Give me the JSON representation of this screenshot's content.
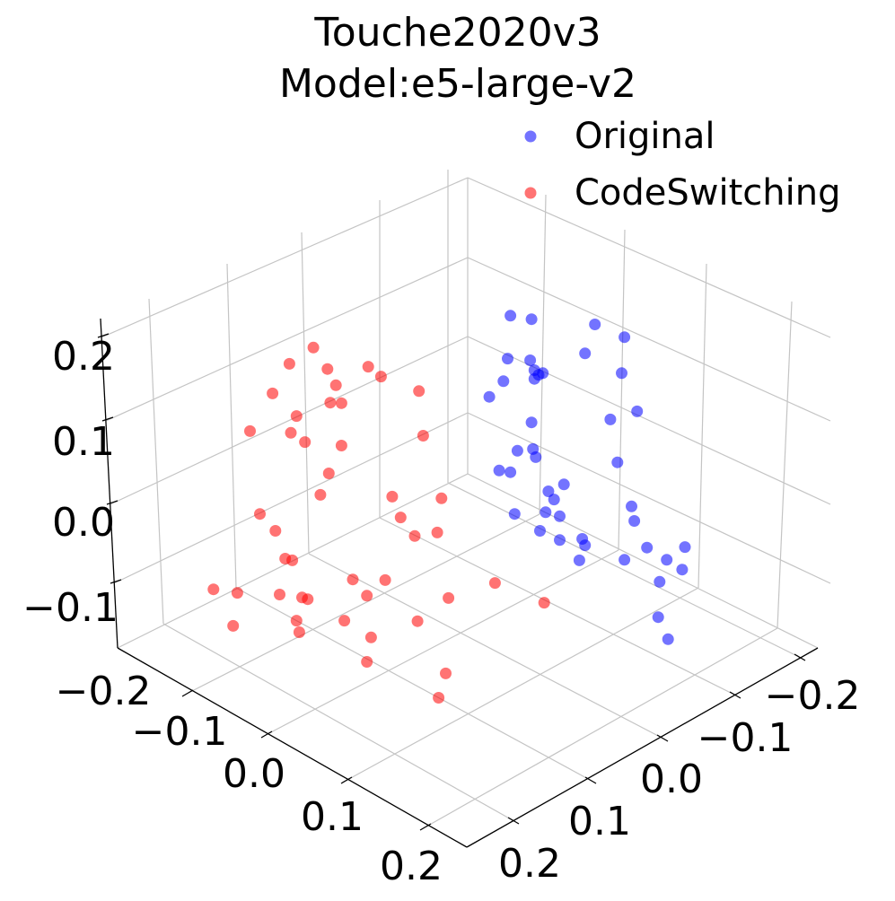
{
  "chart_data": {
    "type": "scatter3d",
    "title": "Touche2020v3\nModel:e5-large-v2",
    "title_lines": [
      "Touche2020v3",
      "Model:e5-large-v2"
    ],
    "xlabel": "",
    "ylabel": "",
    "zlabel": "",
    "x_ticks": [
      "−0.2",
      "−0.1",
      "0.0",
      "0.1",
      "0.2"
    ],
    "y_ticks": [
      "−0.2",
      "−0.1",
      "0.0",
      "0.1",
      "0.2"
    ],
    "z_ticks": [
      "0.2",
      "0.1",
      "0.0",
      "−0.1"
    ],
    "grid": true,
    "legend_position": "top-right",
    "series": [
      {
        "name": "Original",
        "color": "#0000ff",
        "points": [
          [
            0.031,
            -0.031,
            0.337
          ],
          [
            0.046,
            -0.046,
            0.331
          ],
          [
            0.091,
            -0.091,
            0.322
          ],
          [
            0.112,
            -0.112,
            0.3
          ],
          [
            0.084,
            -0.084,
            0.272
          ],
          [
            0.029,
            -0.029,
            0.263
          ],
          [
            0.045,
            -0.045,
            0.26
          ],
          [
            0.048,
            -0.048,
            0.243
          ],
          [
            0.051,
            -0.051,
            0.235
          ],
          [
            0.054,
            -0.054,
            0.238
          ],
          [
            0.048,
            -0.048,
            0.228
          ],
          [
            0.016,
            -0.016,
            0.197
          ],
          [
            0.026,
            -0.026,
            0.224
          ],
          [
            0.11,
            -0.11,
            0.238
          ],
          [
            0.121,
            -0.121,
            0.172
          ],
          [
            0.102,
            -0.102,
            0.158
          ],
          [
            0.046,
            -0.046,
            0.153
          ],
          [
            0.047,
            -0.047,
            0.107
          ],
          [
            0.036,
            -0.036,
            0.104
          ],
          [
            0.023,
            -0.023,
            0.07
          ],
          [
            0.031,
            -0.031,
            0.067
          ],
          [
            0.049,
            -0.049,
            0.093
          ],
          [
            0.107,
            -0.107,
            0.084
          ],
          [
            0.069,
            -0.069,
            0.046
          ],
          [
            0.058,
            -0.058,
            0.034
          ],
          [
            0.062,
            -0.062,
            0.02
          ],
          [
            0.117,
            -0.117,
            0.008
          ],
          [
            0.119,
            -0.119,
            -0.017
          ],
          [
            0.034,
            -0.034,
            -0.005
          ],
          [
            0.056,
            -0.056,
            -0.002
          ],
          [
            0.066,
            -0.066,
            -0.009
          ],
          [
            0.052,
            -0.052,
            -0.034
          ],
          [
            0.082,
            -0.082,
            -0.048
          ],
          [
            0.084,
            -0.084,
            -0.059
          ],
          [
            0.066,
            -0.066,
            -0.05
          ],
          [
            0.08,
            -0.08,
            -0.085
          ],
          [
            0.112,
            -0.112,
            -0.084
          ],
          [
            0.128,
            -0.128,
            -0.063
          ],
          [
            0.142,
            -0.142,
            -0.084
          ],
          [
            0.155,
            -0.155,
            -0.062
          ],
          [
            0.153,
            -0.153,
            -0.101
          ],
          [
            0.137,
            -0.137,
            -0.122
          ],
          [
            0.136,
            -0.136,
            -0.183
          ],
          [
            0.143,
            -0.143,
            -0.221
          ]
        ]
      },
      {
        "name": "CodeSwitching",
        "color": "#ff0000",
        "points": [
          [
            -0.109,
            0.109,
            0.282
          ],
          [
            -0.126,
            0.126,
            0.254
          ],
          [
            -0.099,
            0.099,
            0.245
          ],
          [
            -0.07,
            0.07,
            0.249
          ],
          [
            -0.061,
            0.061,
            0.232
          ],
          [
            -0.093,
            0.093,
            0.217
          ],
          [
            -0.138,
            0.138,
            0.203
          ],
          [
            -0.097,
            0.097,
            0.187
          ],
          [
            -0.089,
            0.089,
            0.186
          ],
          [
            -0.034,
            0.034,
            0.207
          ],
          [
            -0.121,
            0.121,
            0.164
          ],
          [
            -0.154,
            0.154,
            0.138
          ],
          [
            -0.125,
            0.125,
            0.135
          ],
          [
            -0.115,
            0.115,
            0.119
          ],
          [
            -0.031,
            0.031,
            0.13
          ],
          [
            -0.089,
            0.089,
            0.113
          ],
          [
            -0.098,
            0.098,
            0.065
          ],
          [
            -0.104,
            0.104,
            0.028
          ],
          [
            -0.053,
            0.053,
            0.025
          ],
          [
            -0.018,
            0.018,
            0.022
          ],
          [
            -0.147,
            0.147,
            -0.005
          ],
          [
            -0.047,
            0.047,
            -0.011
          ],
          [
            -0.136,
            0.136,
            -0.034
          ],
          [
            -0.037,
            0.037,
            -0.043
          ],
          [
            -0.021,
            0.021,
            -0.037
          ],
          [
            -0.129,
            0.129,
            -0.082
          ],
          [
            -0.124,
            0.124,
            -0.085
          ],
          [
            -0.081,
            0.081,
            -0.118
          ],
          [
            -0.058,
            0.058,
            -0.119
          ],
          [
            0.02,
            -0.02,
            -0.124
          ],
          [
            -0.18,
            0.18,
            -0.135
          ],
          [
            -0.163,
            0.163,
            -0.141
          ],
          [
            -0.133,
            0.133,
            -0.144
          ],
          [
            -0.117,
            0.117,
            -0.149
          ],
          [
            -0.113,
            0.113,
            -0.152
          ],
          [
            -0.071,
            0.071,
            -0.146
          ],
          [
            -0.013,
            0.013,
            -0.15
          ],
          [
            0.055,
            -0.055,
            -0.158
          ],
          [
            -0.121,
            0.121,
            -0.189
          ],
          [
            -0.087,
            0.087,
            -0.189
          ],
          [
            -0.035,
            0.035,
            -0.19
          ],
          [
            -0.068,
            0.068,
            -0.218
          ],
          [
            -0.166,
            0.166,
            -0.198
          ],
          [
            -0.119,
            0.119,
            -0.209
          ],
          [
            -0.071,
            0.071,
            -0.26
          ],
          [
            -0.015,
            0.015,
            -0.28
          ],
          [
            -0.02,
            0.02,
            -0.322
          ]
        ]
      }
    ]
  }
}
